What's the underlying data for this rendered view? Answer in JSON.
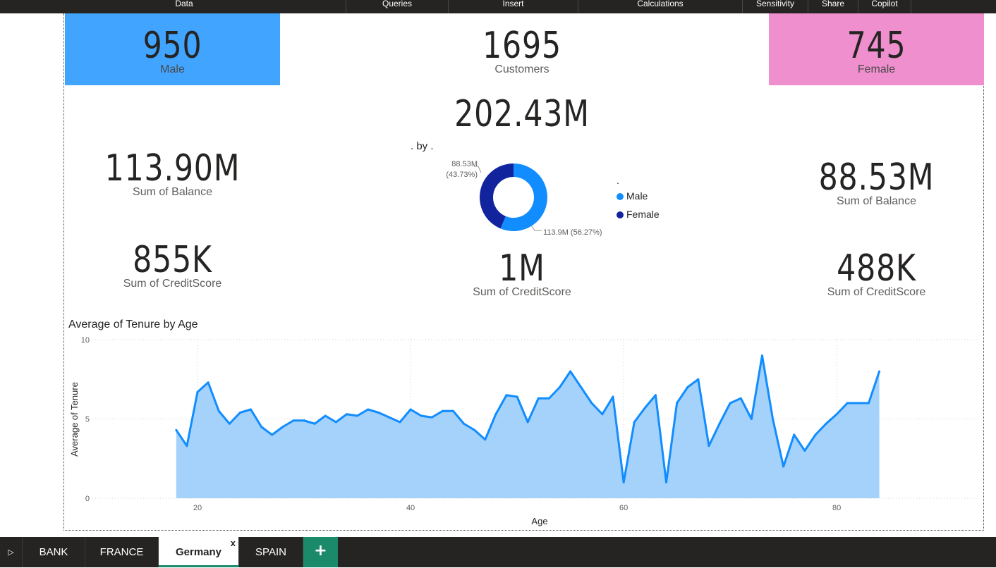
{
  "ribbon": {
    "items": [
      "Data",
      "Queries",
      "Insert",
      "Calculations",
      "Sensitivity",
      "Share",
      "Copilot"
    ]
  },
  "kpis": {
    "male": {
      "value": "950",
      "label": "Male"
    },
    "customers": {
      "value": "1695",
      "label": "Customers"
    },
    "female": {
      "value": "745",
      "label": "Female"
    },
    "total_balance": {
      "value": "202.43M"
    },
    "male_balance": {
      "value": "113.90M",
      "label": "Sum of Balance"
    },
    "female_balance": {
      "value": "88.53M",
      "label": "Sum of Balance"
    },
    "male_credit": {
      "value": "855K",
      "label": "Sum of CreditScore"
    },
    "total_credit": {
      "value": "1M",
      "label": "Sum of CreditScore"
    },
    "female_credit": {
      "value": "488K",
      "label": "Sum of CreditScore"
    }
  },
  "colors": {
    "male": "#41a4ff",
    "female": "#ef8fce",
    "donut_male": "#118dff",
    "donut_female": "#12239e",
    "area_line": "#118dff",
    "area_fill": "#a5d2fb"
  },
  "chart_data": [
    {
      "type": "pie",
      "title": ". by .",
      "legend_title": ".",
      "legend_position": "right",
      "categories": [
        "Male",
        "Female"
      ],
      "values": [
        113.9,
        88.53
      ],
      "data_labels": [
        "113.9M (56.27%)",
        "88.53M (43.73%)"
      ]
    },
    {
      "type": "area",
      "title": "Average of Tenure by Age",
      "xlabel": "Age",
      "ylabel": "Average of Tenure",
      "xlim": [
        10,
        88
      ],
      "ylim": [
        0,
        10
      ],
      "xticks": [
        "20",
        "40",
        "60",
        "80"
      ],
      "yticks": [
        "0",
        "5",
        "10"
      ],
      "grid": true,
      "x": [
        18,
        19,
        20,
        21,
        22,
        23,
        24,
        25,
        26,
        27,
        28,
        29,
        30,
        31,
        32,
        33,
        34,
        35,
        36,
        37,
        38,
        39,
        40,
        41,
        42,
        43,
        44,
        45,
        46,
        47,
        48,
        49,
        50,
        51,
        52,
        53,
        54,
        55,
        56,
        57,
        58,
        59,
        60,
        61,
        62,
        63,
        64,
        65,
        66,
        67,
        68,
        69,
        70,
        71,
        72,
        73,
        74,
        75,
        76,
        77,
        78,
        79,
        80,
        81,
        82,
        83,
        84
      ],
      "y": [
        4.3,
        3.3,
        6.7,
        7.3,
        5.5,
        4.7,
        5.4,
        5.6,
        4.5,
        4.0,
        4.5,
        4.9,
        4.9,
        4.7,
        5.2,
        4.8,
        5.3,
        5.2,
        5.6,
        5.4,
        5.1,
        4.8,
        5.6,
        5.2,
        5.1,
        5.5,
        5.5,
        4.7,
        4.3,
        3.7,
        5.3,
        6.5,
        6.4,
        4.8,
        6.3,
        6.3,
        7.0,
        8.0,
        7.0,
        6.0,
        5.3,
        6.4,
        1.0,
        4.8,
        5.7,
        6.5,
        1.0,
        6.0,
        7.0,
        7.5,
        3.3,
        4.7,
        6.0,
        6.3,
        5.0,
        9.0,
        5.0,
        2.0,
        4.0,
        3.0,
        4.0,
        4.7,
        5.3,
        6.0,
        6.0,
        6.0,
        8.0
      ]
    }
  ],
  "tabs": {
    "items": [
      "BANK",
      "FRANCE",
      "Germany",
      "SPAIN"
    ],
    "active": "Germany",
    "close_label": "x",
    "add_label": "+"
  }
}
